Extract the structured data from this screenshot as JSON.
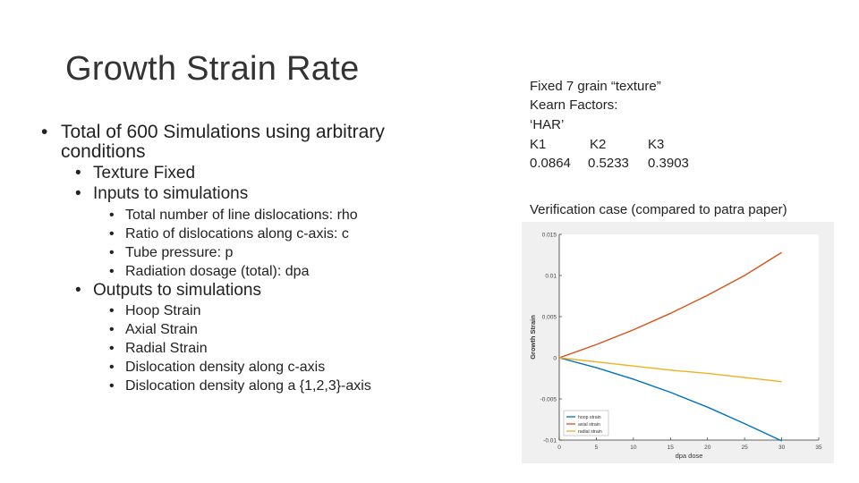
{
  "slide": {
    "title": "Growth Strain Rate",
    "bullets": {
      "main": "Total of 600 Simulations using arbitrary",
      "main_cont": "conditions",
      "texture": "Texture Fixed",
      "inputs": "Inputs to simulations",
      "input_items": [
        "Total number of line dislocations: rho",
        "Ratio of dislocations along c-axis: c",
        "Tube pressure: p",
        "Radiation dosage (total): dpa"
      ],
      "outputs": "Outputs to simulations",
      "output_items": [
        "Hoop Strain",
        "Axial Strain",
        "Radial Strain",
        "Dislocation density along c-axis",
        "Dislocation density along a {1,2,3}-axis"
      ]
    },
    "right": {
      "line1": "Fixed 7 grain “texture”",
      "line2": "Kearn Factors:",
      "line3": "‘HAR’",
      "k_headers": [
        "K1",
        "K2",
        "K3"
      ],
      "k_values": [
        "0.0864",
        "0.5233",
        "0.3903"
      ],
      "verification": "Verification case (compared to patra paper)"
    }
  },
  "chart_data": {
    "type": "line",
    "xlabel": "dpa dose",
    "ylabel": "Growth Strain",
    "xlim": [
      0,
      35
    ],
    "ylim": [
      -0.01,
      0.015
    ],
    "x_ticks": [
      "0",
      "5",
      "10",
      "15",
      "20",
      "25",
      "30",
      "35"
    ],
    "y_ticks": [
      "-0.01",
      "-0.005",
      "0",
      "0.005",
      "0.01",
      "0.015"
    ],
    "legend_position": "bottom-left",
    "grid": false,
    "series": [
      {
        "name": "hoop strain",
        "color": "#0072BD",
        "x": [
          0,
          5,
          10,
          15,
          20,
          25,
          30
        ],
        "y": [
          0,
          -0.0012,
          -0.0026,
          -0.0042,
          -0.006,
          -0.008,
          -0.0101
        ]
      },
      {
        "name": "axial strain",
        "color": "#D95319",
        "x": [
          0,
          5,
          10,
          15,
          20,
          25,
          30
        ],
        "y": [
          0,
          0.0016,
          0.0034,
          0.0054,
          0.0076,
          0.01,
          0.0128
        ]
      },
      {
        "name": "radial strain",
        "color": "#EDB120",
        "x": [
          0,
          5,
          10,
          15,
          20,
          25,
          30
        ],
        "y": [
          0,
          -0.0005,
          -0.001,
          -0.0015,
          -0.0019,
          -0.0024,
          -0.0029
        ]
      }
    ]
  }
}
